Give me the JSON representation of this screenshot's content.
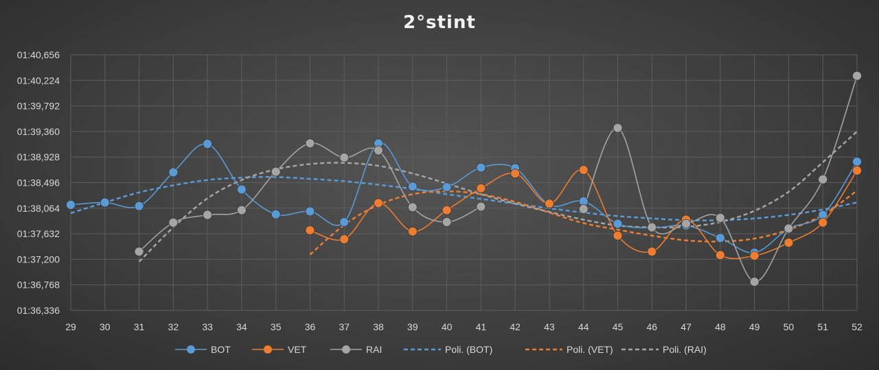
{
  "chart_data": {
    "type": "line",
    "title": "2°stint",
    "x": [
      29,
      30,
      31,
      32,
      33,
      34,
      35,
      36,
      37,
      38,
      39,
      40,
      41,
      42,
      43,
      44,
      45,
      46,
      47,
      48,
      49,
      50,
      51,
      52
    ],
    "x_tick_labels": [
      "29",
      "30",
      "31",
      "32",
      "33",
      "34",
      "35",
      "36",
      "37",
      "38",
      "39",
      "40",
      "41",
      "42",
      "43",
      "44",
      "45",
      "46",
      "47",
      "48",
      "49",
      "50",
      "51",
      "52"
    ],
    "y_tick_labels": [
      "01:36,336",
      "01:36,768",
      "01:37,200",
      "01:37,632",
      "01:38,064",
      "01:38,496",
      "01:38,928",
      "01:39,360",
      "01:39,792",
      "01:40,224",
      "01:40,656"
    ],
    "y_ticks_seconds": [
      96.336,
      96.768,
      97.2,
      97.632,
      98.064,
      98.496,
      98.928,
      99.36,
      99.792,
      100.224,
      100.656
    ],
    "ylim": [
      96.336,
      100.656
    ],
    "grid": true,
    "legend_position": "bottom",
    "series": [
      {
        "name": "BOT",
        "color": "#5b9bd5",
        "style": "smooth-markers",
        "values": [
          98.12,
          98.16,
          98.1,
          98.67,
          99.15,
          98.38,
          97.96,
          98.01,
          97.83,
          99.16,
          98.43,
          98.42,
          98.75,
          98.74,
          98.12,
          98.18,
          97.8,
          97.73,
          97.77,
          97.56,
          97.31,
          97.72,
          97.95,
          98.85
        ]
      },
      {
        "name": "VET",
        "color": "#ed7d31",
        "style": "smooth-markers",
        "values": [
          null,
          null,
          null,
          null,
          null,
          null,
          null,
          97.69,
          97.54,
          98.15,
          97.67,
          98.03,
          98.4,
          98.65,
          98.14,
          98.71,
          97.6,
          97.33,
          97.87,
          97.27,
          97.26,
          97.48,
          97.82,
          98.7
        ]
      },
      {
        "name": "RAI",
        "color": "#a5a5a5",
        "style": "smooth-markers",
        "values": [
          null,
          null,
          97.33,
          97.82,
          97.95,
          98.03,
          98.68,
          99.16,
          98.92,
          99.04,
          98.08,
          97.83,
          98.09,
          null,
          null,
          98.05,
          99.42,
          97.74,
          97.8,
          97.9,
          96.82,
          97.72,
          98.55,
          100.3
        ]
      },
      {
        "name": "Poli. (BOT)",
        "color": "#5b9bd5",
        "style": "dashed",
        "values": [
          97.98,
          98.16,
          98.33,
          98.45,
          98.54,
          98.58,
          98.59,
          98.56,
          98.52,
          98.46,
          98.39,
          98.3,
          98.22,
          98.14,
          98.06,
          97.99,
          97.93,
          97.89,
          97.86,
          97.86,
          97.89,
          97.95,
          98.04,
          98.16
        ]
      },
      {
        "name": "Poli. (VET)",
        "color": "#ed7d31",
        "style": "dashed",
        "values": [
          null,
          null,
          null,
          null,
          null,
          null,
          null,
          97.28,
          97.78,
          98.12,
          98.3,
          98.35,
          98.3,
          98.17,
          97.99,
          97.81,
          97.7,
          97.6,
          97.52,
          97.5,
          97.55,
          97.7,
          97.95,
          98.36
        ]
      },
      {
        "name": "Poli. (RAI)",
        "color": "#a5a5a5",
        "style": "dashed",
        "values": [
          null,
          null,
          97.16,
          97.74,
          98.23,
          98.54,
          98.72,
          98.81,
          98.83,
          98.78,
          98.65,
          98.48,
          98.3,
          98.14,
          98.0,
          97.87,
          97.77,
          97.74,
          97.75,
          97.83,
          98.02,
          98.34,
          98.84,
          99.36
        ]
      }
    ]
  }
}
